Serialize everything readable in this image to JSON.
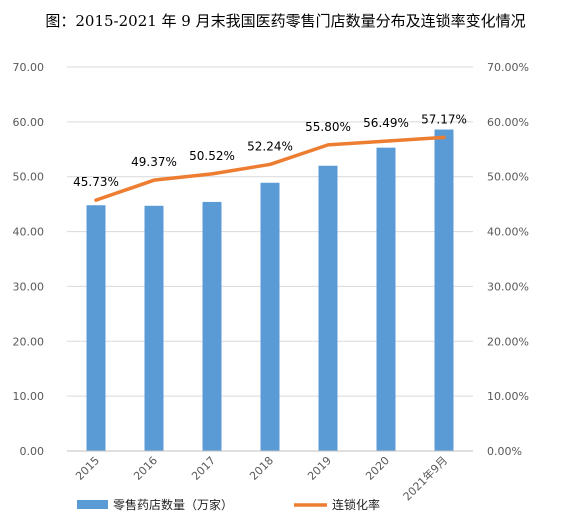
{
  "chart_data": {
    "type": "bar",
    "title": "图：2015-2021 年 9 月末我国医药零售门店数量分布及连锁率变化情况",
    "categories": [
      "2015",
      "2016",
      "2017",
      "2018",
      "2019",
      "2020",
      "2021年9月"
    ],
    "series": [
      {
        "name": "零售药店数量（万家）",
        "type": "bar",
        "axis": "left",
        "values": [
          44.8,
          44.7,
          45.4,
          48.9,
          52.0,
          55.3,
          58.6
        ],
        "color": "#5B9BD5"
      },
      {
        "name": "连锁化率",
        "type": "line",
        "axis": "right",
        "values": [
          45.73,
          49.37,
          50.52,
          52.24,
          55.8,
          56.49,
          57.17
        ],
        "color": "#ED7D31"
      }
    ],
    "data_labels": [
      "45.73%",
      "49.37%",
      "50.52%",
      "52.24%",
      "55.80%",
      "56.49%",
      "57.17%"
    ],
    "y_left": {
      "ticks": [
        "0.00",
        "10.00",
        "20.00",
        "30.00",
        "40.00",
        "50.00",
        "60.00",
        "70.00"
      ],
      "range": [
        0,
        70
      ]
    },
    "y_right": {
      "ticks": [
        "0.00%",
        "10.00%",
        "20.00%",
        "30.00%",
        "40.00%",
        "50.00%",
        "60.00%",
        "70.00%"
      ],
      "range": [
        0,
        70
      ]
    },
    "grid": true,
    "legend_position": "bottom"
  }
}
